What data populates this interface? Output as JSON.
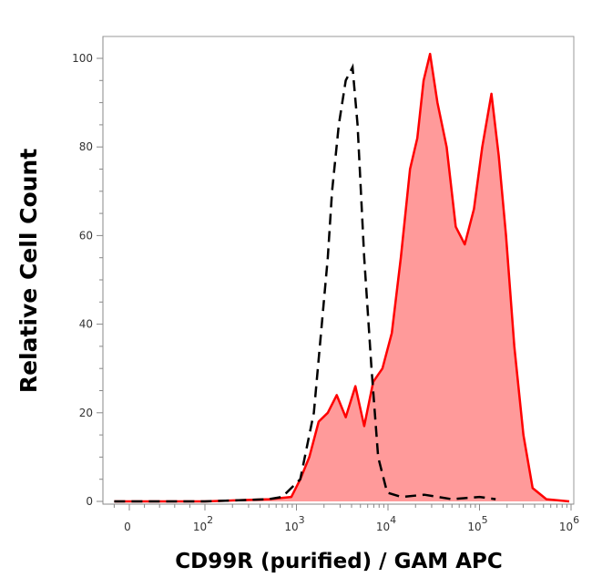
{
  "chart_data": {
    "type": "area",
    "xlabel": "CD99R (purified) / GAM APC",
    "ylabel": "Relative Cell Count",
    "x_scale": "biexponential (log above 10^2)",
    "xlim": [
      -20,
      1000000
    ],
    "ylim": [
      0,
      105
    ],
    "grid": false,
    "x_ticks": [
      {
        "value": 0,
        "label": "0"
      },
      {
        "value": 100,
        "label": "10",
        "sup": "2"
      },
      {
        "value": 1000,
        "label": "10",
        "sup": "3"
      },
      {
        "value": 10000,
        "label": "10",
        "sup": "4"
      },
      {
        "value": 100000,
        "label": "10",
        "sup": "5"
      },
      {
        "value": 1000000,
        "label": "10",
        "sup": "6"
      }
    ],
    "y_ticks": [
      0,
      20,
      40,
      60,
      80,
      100
    ],
    "colors": {
      "stained_fill": "#ff9a9a",
      "stained_line": "#ff0000",
      "control_line": "#000000"
    },
    "series": [
      {
        "style": "filled red",
        "x": [
          -20,
          0,
          100,
          500,
          880,
          1100,
          1380,
          1750,
          2200,
          2750,
          3450,
          4400,
          5500,
          6900,
          8700,
          11000,
          13800,
          17400,
          20900,
          24500,
          28800,
          34700,
          43700,
          55000,
          69000,
          87000,
          107000,
          135000,
          162000,
          195000,
          240000,
          302000,
          380000,
          537000,
          955000
        ],
        "y": [
          0,
          0,
          0,
          0.5,
          1,
          5,
          10,
          18,
          20,
          24,
          19,
          26,
          17,
          27,
          30,
          38,
          55,
          75,
          82,
          95,
          101,
          90,
          80,
          62,
          58,
          66,
          80,
          92,
          78,
          60,
          35,
          15,
          3,
          0.5,
          0
        ]
      },
      {
        "style": "dashed black",
        "x": [
          -20,
          0,
          100,
          500,
          700,
          1100,
          1550,
          2200,
          2450,
          2900,
          3450,
          4100,
          4650,
          5500,
          6600,
          7800,
          9800,
          14000,
          25000,
          50000,
          100000,
          150000
        ],
        "y": [
          0,
          0,
          0,
          0.5,
          1,
          5,
          20,
          55,
          70,
          85,
          95,
          98,
          85,
          55,
          30,
          10,
          2,
          1,
          1.5,
          0.5,
          1,
          0.5
        ]
      }
    ]
  }
}
